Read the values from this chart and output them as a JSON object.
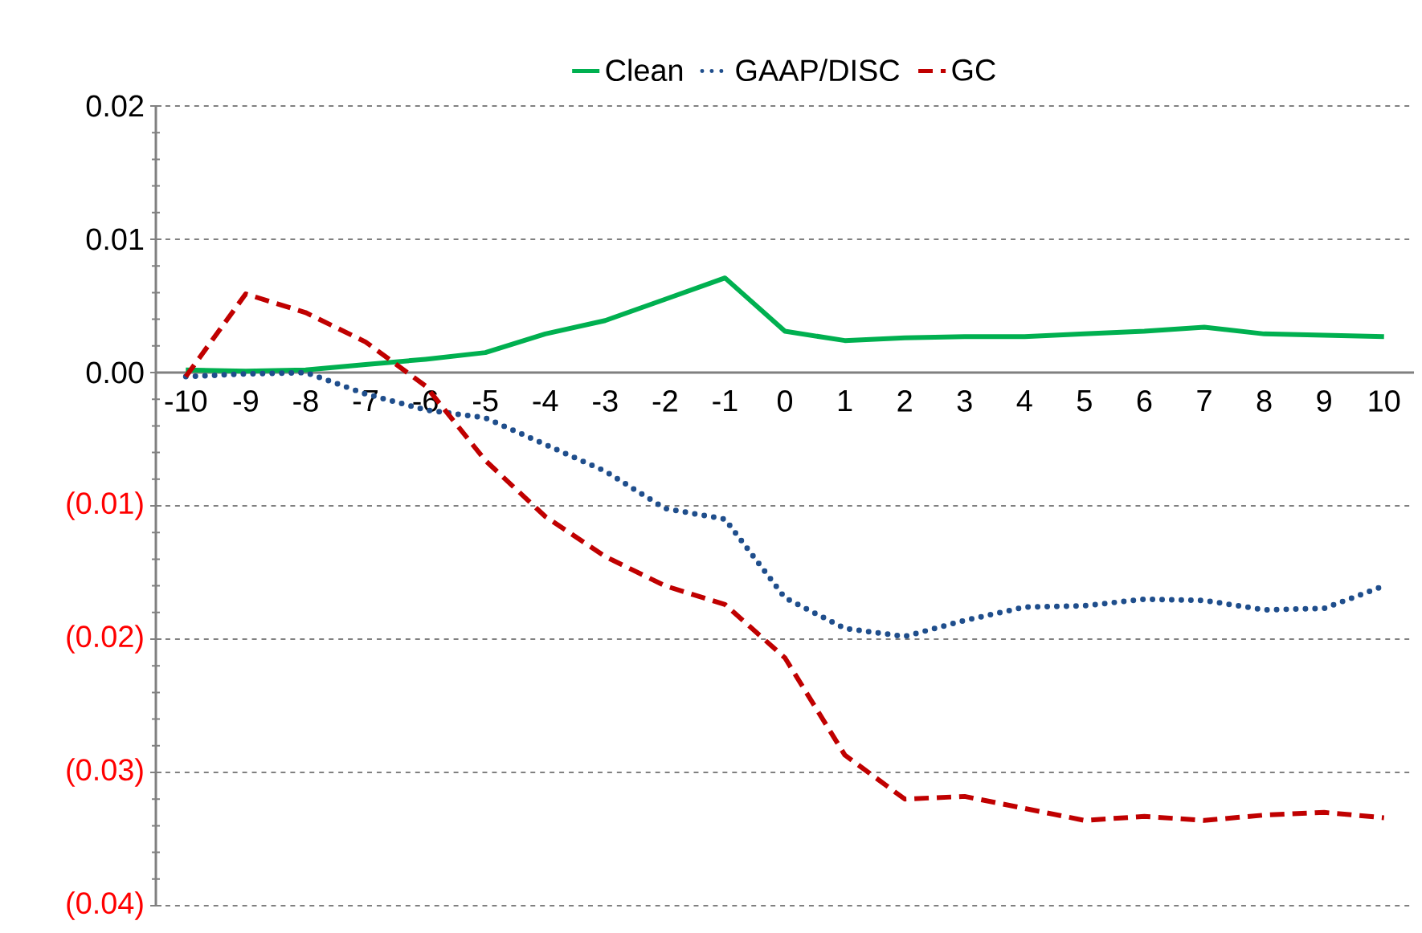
{
  "chart_data": {
    "type": "line",
    "categories": [
      "-10",
      "-9",
      "-8",
      "-7",
      "-6",
      "-5",
      "-4",
      "-3",
      "-2",
      "-1",
      "0",
      "1",
      "2",
      "3",
      "4",
      "5",
      "6",
      "7",
      "8",
      "9",
      "10"
    ],
    "series": [
      {
        "name": "Clean",
        "color": "#00b050",
        "line_style": "solid",
        "values": [
          0.0002,
          0.0001,
          0.0002,
          0.0006,
          0.001,
          0.0015,
          0.0029,
          0.0039,
          0.0055,
          0.0071,
          0.0031,
          0.0024,
          0.0026,
          0.0027,
          0.0027,
          0.0029,
          0.0031,
          0.0034,
          0.0029,
          0.0028,
          0.0027
        ]
      },
      {
        "name": "GAAP/DISC",
        "color": "#1f4e8c",
        "line_style": "dotted",
        "values": [
          -0.0003,
          -0.0001,
          0.0,
          -0.0016,
          -0.0028,
          -0.0034,
          -0.0054,
          -0.0074,
          -0.0102,
          -0.011,
          -0.0169,
          -0.0192,
          -0.0198,
          -0.0186,
          -0.0176,
          -0.0175,
          -0.017,
          -0.0171,
          -0.0178,
          -0.0177,
          -0.016
        ]
      },
      {
        "name": "GC",
        "color": "#c00000",
        "line_style": "dashed",
        "values": [
          -0.0003,
          0.0059,
          0.0045,
          0.0023,
          -0.001,
          -0.0066,
          -0.0108,
          -0.0138,
          -0.016,
          -0.0174,
          -0.0214,
          -0.0287,
          -0.032,
          -0.0318,
          -0.0327,
          -0.0336,
          -0.0333,
          -0.0336,
          -0.0332,
          -0.033,
          -0.0334
        ]
      }
    ],
    "ylim": [
      -0.04,
      0.02
    ],
    "yticks": [
      {
        "value": 0.02,
        "label": "0.02"
      },
      {
        "value": 0.01,
        "label": "0.01"
      },
      {
        "value": 0,
        "label": "0.00"
      },
      {
        "value": -0.01,
        "label": "(0.01)"
      },
      {
        "value": -0.02,
        "label": "(0.02)"
      },
      {
        "value": -0.03,
        "label": "(0.03)"
      },
      {
        "value": -0.04,
        "label": "(0.04)"
      }
    ],
    "grid": "y",
    "legend": "top",
    "marker": "none"
  }
}
